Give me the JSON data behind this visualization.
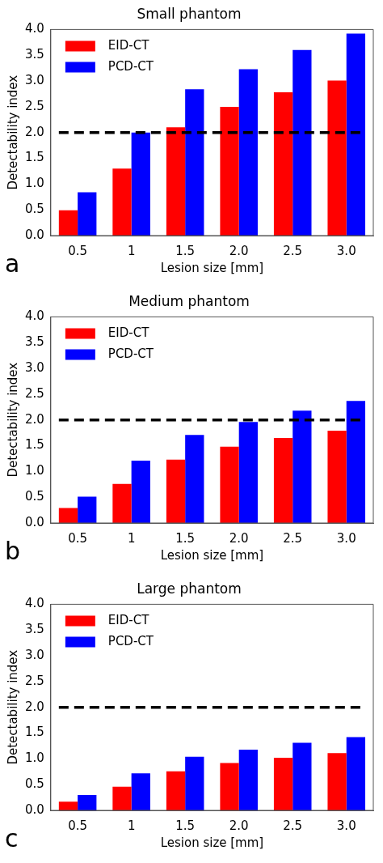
{
  "chart_data": [
    {
      "type": "bar",
      "title": "Small phantom",
      "xlabel": "Lesion size [mm]",
      "ylabel": "Detectability index",
      "categories": [
        "0.5",
        "1",
        "1.5",
        "2.0",
        "2.5",
        "3.0"
      ],
      "series": [
        {
          "name": "EID-CT",
          "color": "#ff0000",
          "values": [
            0.49,
            1.3,
            2.1,
            2.5,
            2.78,
            3.01
          ]
        },
        {
          "name": "PCD-CT",
          "color": "#0000ff",
          "values": [
            0.84,
            2.0,
            2.84,
            3.23,
            3.6,
            3.92
          ]
        }
      ],
      "ylim": [
        0,
        4
      ],
      "yticks": [
        {
          "value": 0,
          "label": "0.0"
        },
        {
          "value": 0.5,
          "label": "0.5"
        },
        {
          "value": 1,
          "label": "1.0"
        },
        {
          "value": 1.5,
          "label": "1.5"
        },
        {
          "value": 2,
          "label": "2.0"
        },
        {
          "value": 2.5,
          "label": "2.5"
        },
        {
          "value": 3,
          "label": "3.0"
        },
        {
          "value": 3.5,
          "label": "3.5"
        },
        {
          "value": 4,
          "label": "4.0"
        }
      ],
      "ref_lines": [
        {
          "axis": "y",
          "value": 2,
          "color": "#000000",
          "line_style": "dashed"
        }
      ],
      "legend": "top left",
      "annotations": [
        "a"
      ]
    },
    {
      "type": "bar",
      "title": "Medium phantom",
      "xlabel": "Lesion size [mm]",
      "ylabel": "Detectability index",
      "categories": [
        "0.5",
        "1",
        "1.5",
        "2.0",
        "2.5",
        "3.0"
      ],
      "series": [
        {
          "name": "EID-CT",
          "color": "#ff0000",
          "values": [
            0.29,
            0.76,
            1.23,
            1.48,
            1.65,
            1.79
          ]
        },
        {
          "name": "PCD-CT",
          "color": "#0000ff",
          "values": [
            0.51,
            1.21,
            1.71,
            1.96,
            2.18,
            2.37
          ]
        }
      ],
      "ylim": [
        0,
        4
      ],
      "yticks": [
        {
          "value": 0,
          "label": "0.0"
        },
        {
          "value": 0.5,
          "label": "0.5"
        },
        {
          "value": 1,
          "label": "1.0"
        },
        {
          "value": 1.5,
          "label": "1.5"
        },
        {
          "value": 2,
          "label": "2.0"
        },
        {
          "value": 2.5,
          "label": "2.5"
        },
        {
          "value": 3,
          "label": "3.0"
        },
        {
          "value": 3.5,
          "label": "3.5"
        },
        {
          "value": 4,
          "label": "4.0"
        }
      ],
      "ref_lines": [
        {
          "axis": "y",
          "value": 2,
          "color": "#000000",
          "line_style": "dashed"
        }
      ],
      "legend": "top left",
      "annotations": [
        "b"
      ]
    },
    {
      "type": "bar",
      "title": "Large phantom",
      "xlabel": "Lesion size [mm]",
      "ylabel": "Detectability index",
      "categories": [
        "0.5",
        "1",
        "1.5",
        "2.0",
        "2.5",
        "3.0"
      ],
      "series": [
        {
          "name": "EID-CT",
          "color": "#ff0000",
          "values": [
            0.17,
            0.46,
            0.76,
            0.92,
            1.02,
            1.11
          ]
        },
        {
          "name": "PCD-CT",
          "color": "#0000ff",
          "values": [
            0.3,
            0.72,
            1.04,
            1.18,
            1.31,
            1.42
          ]
        }
      ],
      "ylim": [
        0,
        4
      ],
      "yticks": [
        {
          "value": 0,
          "label": "0.0"
        },
        {
          "value": 0.5,
          "label": "0.5"
        },
        {
          "value": 1,
          "label": "1.0"
        },
        {
          "value": 1.5,
          "label": "1.5"
        },
        {
          "value": 2,
          "label": "2.0"
        },
        {
          "value": 2.5,
          "label": "2.5"
        },
        {
          "value": 3,
          "label": "3.0"
        },
        {
          "value": 3.5,
          "label": "3.5"
        },
        {
          "value": 4,
          "label": "4.0"
        }
      ],
      "ref_lines": [
        {
          "axis": "y",
          "value": 2,
          "color": "#000000",
          "line_style": "dashed"
        }
      ],
      "legend": "top left",
      "annotations": [
        "c"
      ]
    }
  ]
}
